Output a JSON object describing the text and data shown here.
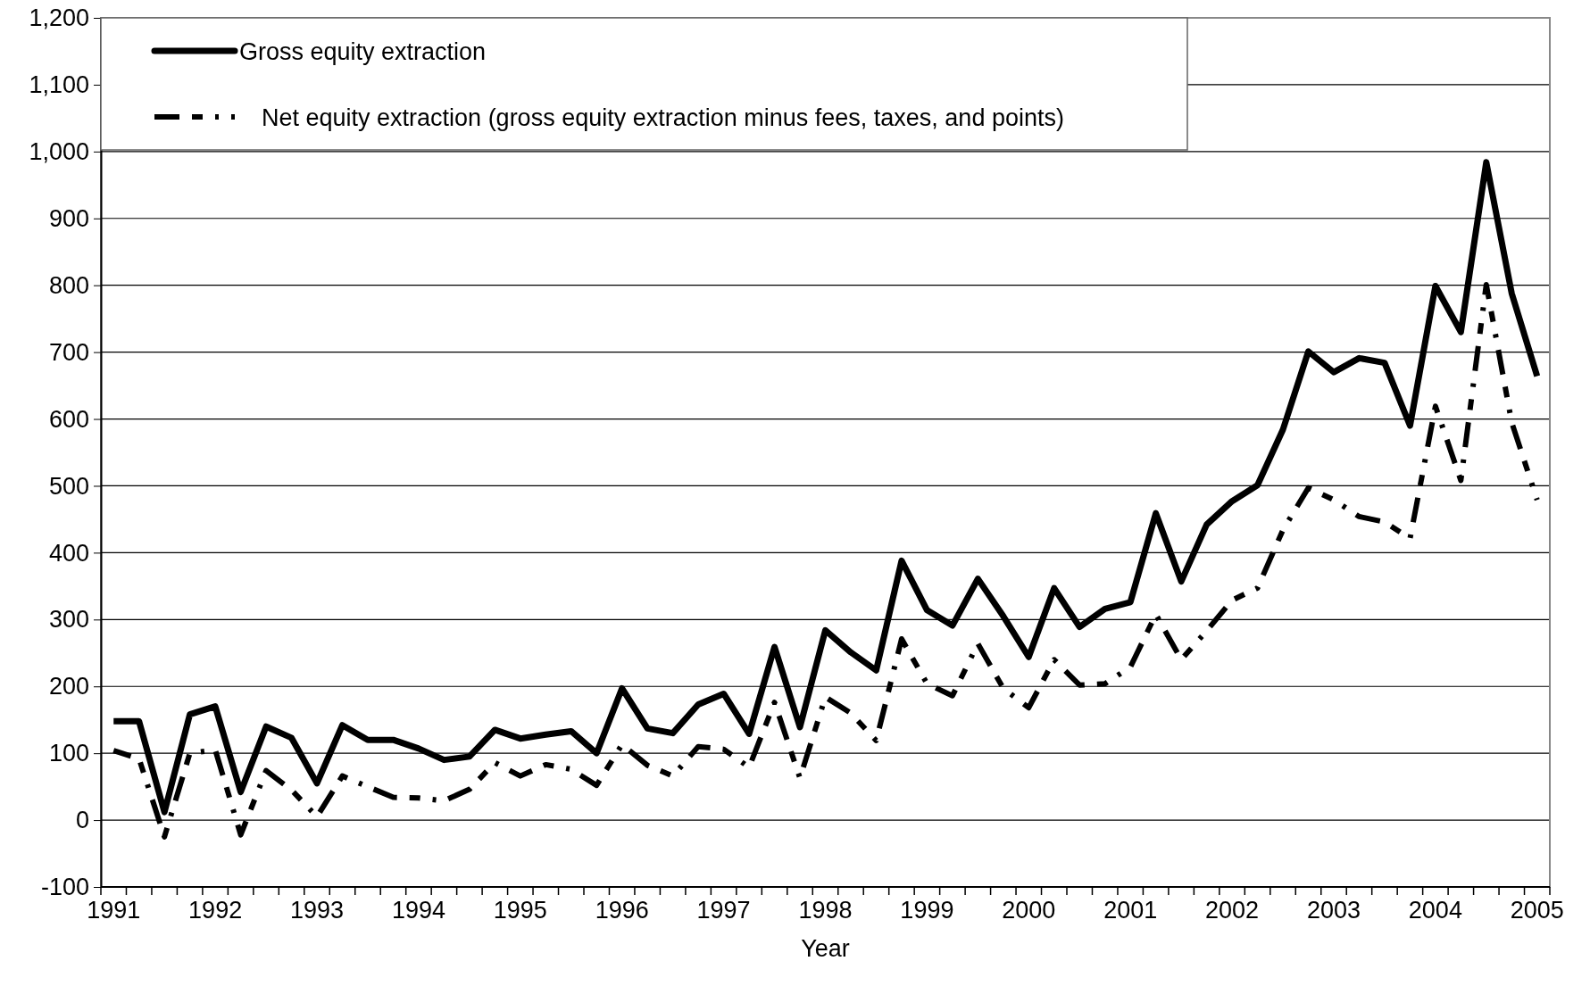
{
  "chart_data": {
    "type": "line",
    "xlabel": "Year",
    "categories": [
      "1991",
      null,
      null,
      null,
      "1992",
      null,
      null,
      null,
      "1993",
      null,
      null,
      null,
      "1994",
      null,
      null,
      null,
      "1995",
      null,
      null,
      null,
      "1996",
      null,
      null,
      null,
      "1997",
      null,
      null,
      null,
      "1998",
      null,
      null,
      null,
      "1999",
      null,
      null,
      null,
      "2000",
      null,
      null,
      null,
      "2001",
      null,
      null,
      null,
      "2002",
      null,
      null,
      null,
      "2003",
      null,
      null,
      null,
      "2004",
      null,
      null,
      null,
      "2005"
    ],
    "series": [
      {
        "name": "Gross equity extraction",
        "color": "#000000",
        "line_style": "solid",
        "values": [
          148,
          148,
          12,
          158,
          170,
          42,
          140,
          123,
          55,
          142,
          120,
          120,
          107,
          90,
          95,
          135,
          122,
          128,
          133,
          100,
          197,
          137,
          130,
          173,
          189,
          129,
          259,
          139,
          284,
          251,
          224,
          388,
          314,
          291,
          361,
          305,
          244,
          347,
          289,
          316,
          326,
          459,
          357,
          442,
          477,
          501,
          584,
          701,
          670,
          691,
          684,
          590,
          799,
          730,
          984,
          788,
          664
        ]
      },
      {
        "name": "Net equity extraction (gross equity extraction minus fees, taxes, and points)",
        "color": "#000000",
        "line_style": "dashed",
        "values": [
          104,
          92,
          -25,
          100,
          105,
          -22,
          74,
          45,
          5,
          66,
          50,
          34,
          33,
          29,
          46,
          86,
          66,
          83,
          76,
          52,
          113,
          82,
          66,
          110,
          106,
          79,
          176,
          63,
          184,
          160,
          119,
          271,
          204,
          186,
          264,
          197,
          168,
          240,
          202,
          204,
          229,
          308,
          240,
          283,
          329,
          347,
          434,
          497,
          479,
          454,
          446,
          421,
          619,
          508,
          801,
          595,
          479
        ]
      }
    ],
    "ylim": [
      -100,
      1200
    ],
    "yticks": [
      {
        "value": -100,
        "label": "-100"
      },
      0,
      100,
      200,
      300,
      400,
      500,
      600,
      700,
      800,
      900,
      {
        "value": 1000,
        "label": "1,000"
      },
      {
        "value": 1100,
        "label": "1,100"
      },
      {
        "value": 1200,
        "label": "1,200"
      }
    ],
    "grid": "y",
    "legend": "top left",
    "marker": "none"
  }
}
